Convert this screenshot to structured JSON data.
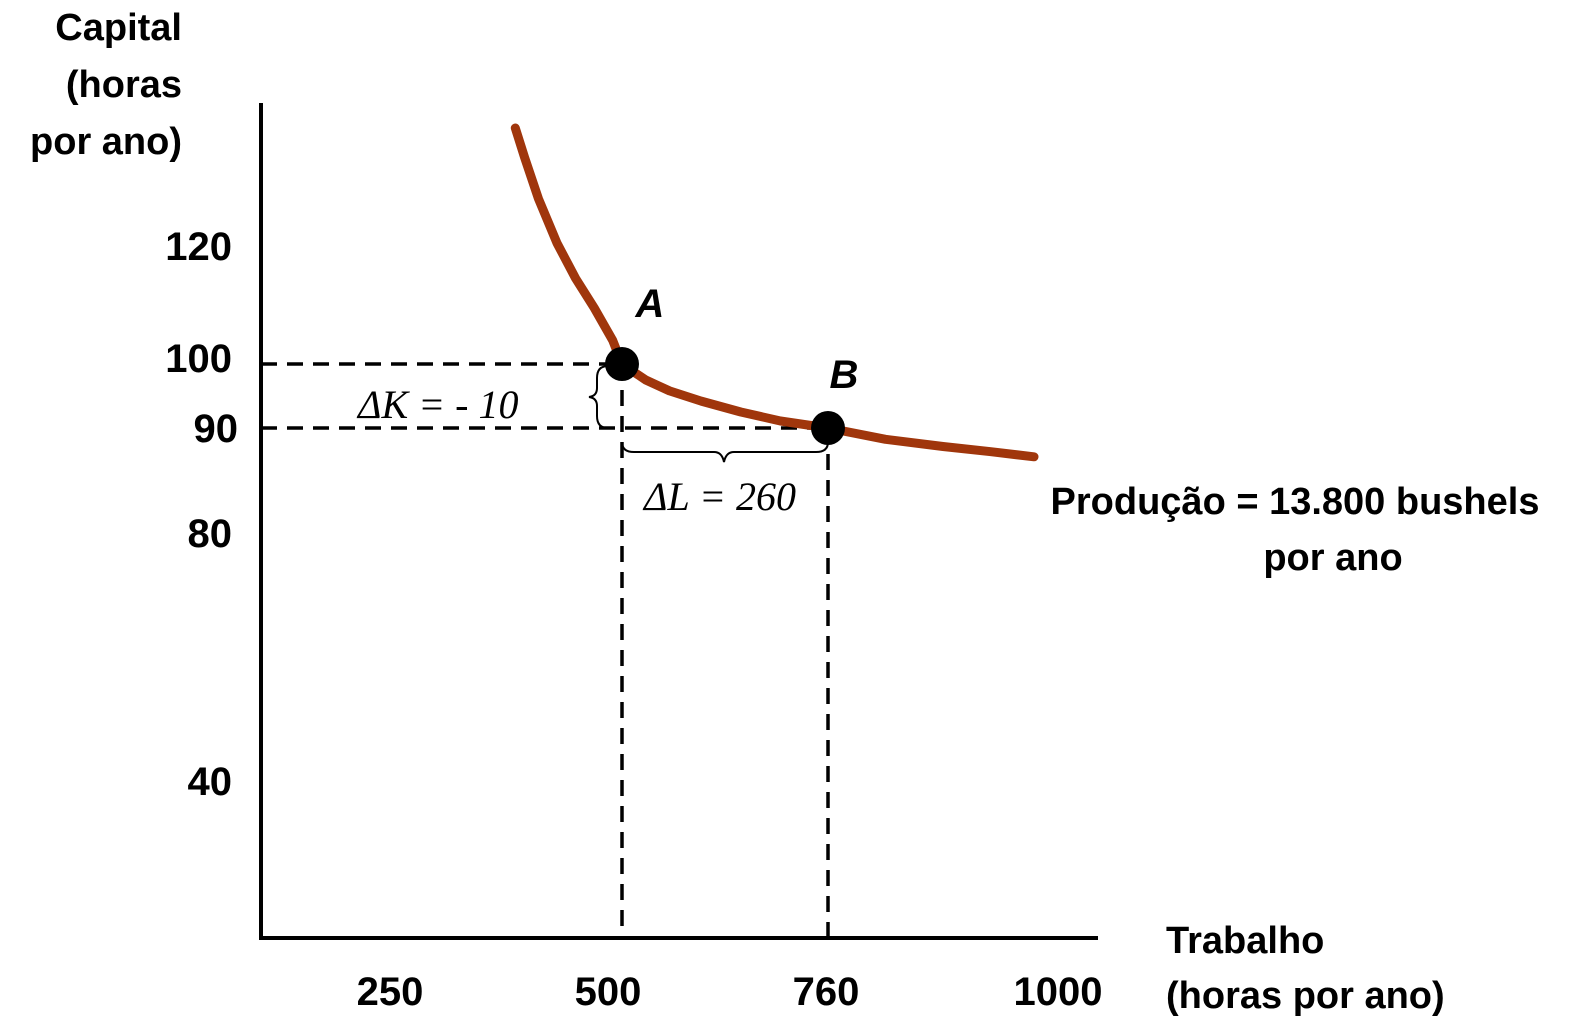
{
  "chart_data": {
    "type": "line",
    "ylabel_lines": [
      "Capital",
      "(horas",
      "por ano)"
    ],
    "xlabel_lines": [
      "Trabalho",
      "(horas por ano)"
    ],
    "x_ticks": [
      250,
      500,
      760,
      1000
    ],
    "y_ticks": [
      40,
      80,
      90,
      100,
      120
    ],
    "curve": {
      "label_lines": [
        "Produção = 13.800 bushels",
        "por ano"
      ],
      "color": "#a0360c",
      "points": [
        [
          385,
          140
        ],
        [
          395,
          135
        ],
        [
          410,
          128
        ],
        [
          430,
          120.5
        ],
        [
          450,
          114.5
        ],
        [
          470,
          109.5
        ],
        [
          490,
          104
        ],
        [
          500,
          100
        ],
        [
          530,
          97.5
        ],
        [
          560,
          95.8
        ],
        [
          600,
          94.2
        ],
        [
          650,
          92.5
        ],
        [
          700,
          91.1
        ],
        [
          760,
          90
        ],
        [
          820,
          88.9
        ],
        [
          880,
          88.2
        ],
        [
          930,
          87.7
        ],
        [
          975,
          87.2
        ]
      ]
    },
    "points": [
      {
        "name": "A",
        "x": 500,
        "y": 100
      },
      {
        "name": "B",
        "x": 760,
        "y": 90
      }
    ],
    "annotations": {
      "delta_k": "ΔK = - 10",
      "delta_l": "ΔL = 260"
    }
  }
}
